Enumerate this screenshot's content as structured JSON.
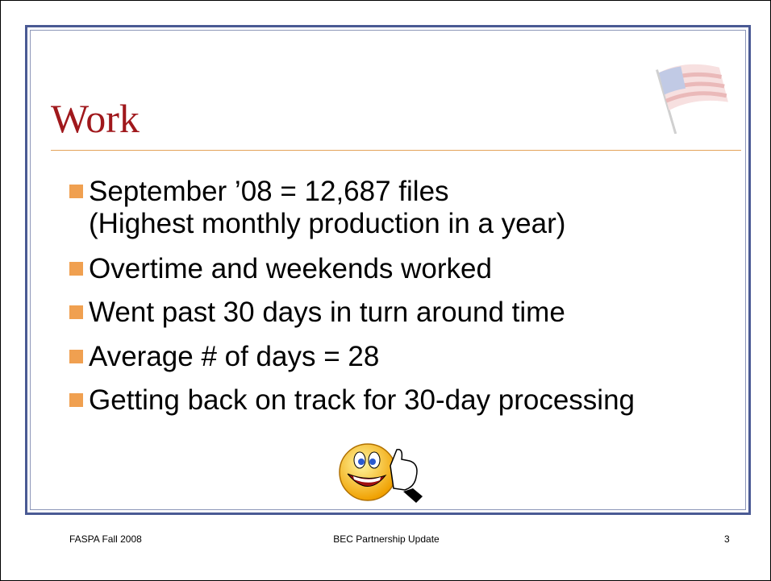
{
  "header": {
    "title": "Work"
  },
  "bullets": [
    [
      "September ’08 = 12,687 files",
      "(Highest monthly production in a year)"
    ],
    [
      "Overtime and weekends worked"
    ],
    [
      "Went past 30 days in turn around time"
    ],
    [
      "Average # of days = 28"
    ],
    [
      "Getting back on track for 30-day processing"
    ]
  ],
  "footer": {
    "left": "FASPA Fall 2008",
    "center": "BEC Partnership Update",
    "page": "3"
  }
}
